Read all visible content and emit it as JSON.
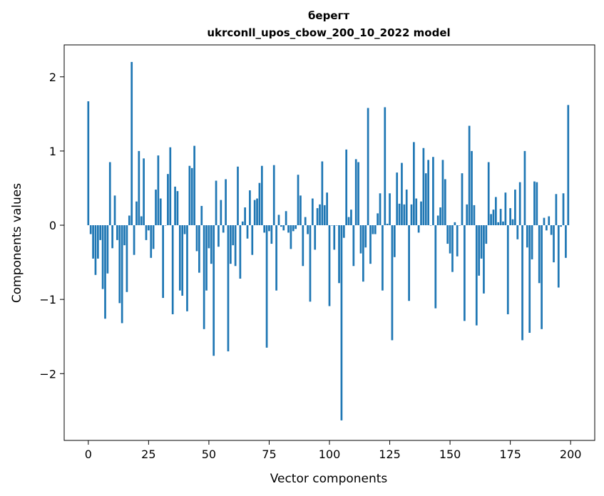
{
  "chart_data": {
    "type": "bar",
    "title_line1": "берегт",
    "title_line2": "ukrconll_upos_cbow_200_10_2022 model",
    "xlabel": "Vector components",
    "ylabel": "Components values",
    "xlim": [
      -10,
      210
    ],
    "ylim": [
      -2.9,
      2.43
    ],
    "x_ticks": [
      0,
      25,
      50,
      75,
      100,
      125,
      150,
      175,
      200
    ],
    "y_ticks": [
      -2,
      -1,
      0,
      1,
      2
    ],
    "y_tick_labels": [
      "−2",
      "−1",
      "0",
      "1",
      "2"
    ],
    "bar_color": "#1f77b4",
    "grid": false,
    "values": [
      1.67,
      -0.12,
      -0.45,
      -0.67,
      -0.45,
      -0.2,
      -0.86,
      -1.26,
      -0.65,
      0.85,
      -0.31,
      0.4,
      -0.2,
      -1.05,
      -1.32,
      -0.27,
      -0.9,
      0.13,
      2.2,
      -0.4,
      0.32,
      1.0,
      0.12,
      0.9,
      -0.2,
      -0.07,
      -0.44,
      -0.32,
      0.48,
      0.94,
      0.36,
      -0.98,
      0.0,
      0.69,
      1.05,
      -1.2,
      0.52,
      0.46,
      -0.88,
      -0.95,
      -0.12,
      -1.16,
      0.8,
      0.77,
      1.07,
      -0.35,
      -0.64,
      0.26,
      -1.4,
      -0.88,
      -0.31,
      -0.52,
      -1.76,
      0.6,
      -0.29,
      0.34,
      -0.1,
      0.62,
      -1.7,
      -0.52,
      -0.27,
      -0.55,
      0.79,
      -0.72,
      0.05,
      0.24,
      -0.18,
      0.47,
      -0.4,
      0.34,
      0.36,
      0.57,
      0.8,
      -0.1,
      -1.65,
      -0.08,
      -0.25,
      0.81,
      -0.88,
      0.14,
      -0.02,
      -0.07,
      0.19,
      -0.1,
      -0.32,
      -0.08,
      -0.05,
      0.68,
      0.4,
      -0.55,
      0.11,
      -0.12,
      -1.03,
      0.36,
      -0.33,
      0.23,
      0.28,
      0.86,
      0.27,
      0.44,
      -1.09,
      0.0,
      -0.33,
      0.0,
      -0.78,
      -2.63,
      -0.17,
      1.02,
      0.11,
      0.21,
      -0.55,
      0.89,
      0.85,
      -0.38,
      -0.76,
      -0.3,
      1.58,
      -0.52,
      -0.12,
      -0.12,
      0.16,
      0.43,
      -0.88,
      1.59,
      0.02,
      0.43,
      -1.55,
      -0.43,
      0.71,
      0.29,
      0.84,
      0.28,
      0.48,
      -1.02,
      0.28,
      1.12,
      0.36,
      -0.1,
      0.32,
      1.04,
      0.7,
      0.88,
      0.0,
      0.92,
      -1.12,
      0.13,
      0.24,
      0.88,
      0.62,
      -0.25,
      -0.38,
      -0.63,
      0.04,
      -0.42,
      0.0,
      0.7,
      -1.29,
      0.28,
      1.34,
      1.0,
      0.27,
      -1.35,
      -0.68,
      -0.45,
      -0.92,
      -0.25,
      0.85,
      0.15,
      0.21,
      0.38,
      0.04,
      0.22,
      0.05,
      0.44,
      -1.2,
      0.23,
      0.08,
      0.48,
      -0.19,
      0.58,
      -1.55,
      1.0,
      -0.3,
      -1.45,
      -0.46,
      0.59,
      0.58,
      -0.78,
      -1.4,
      0.1,
      -0.07,
      0.12,
      -0.13,
      -0.5,
      0.42,
      -0.84,
      -0.02,
      0.43,
      -0.44,
      1.62
    ]
  }
}
